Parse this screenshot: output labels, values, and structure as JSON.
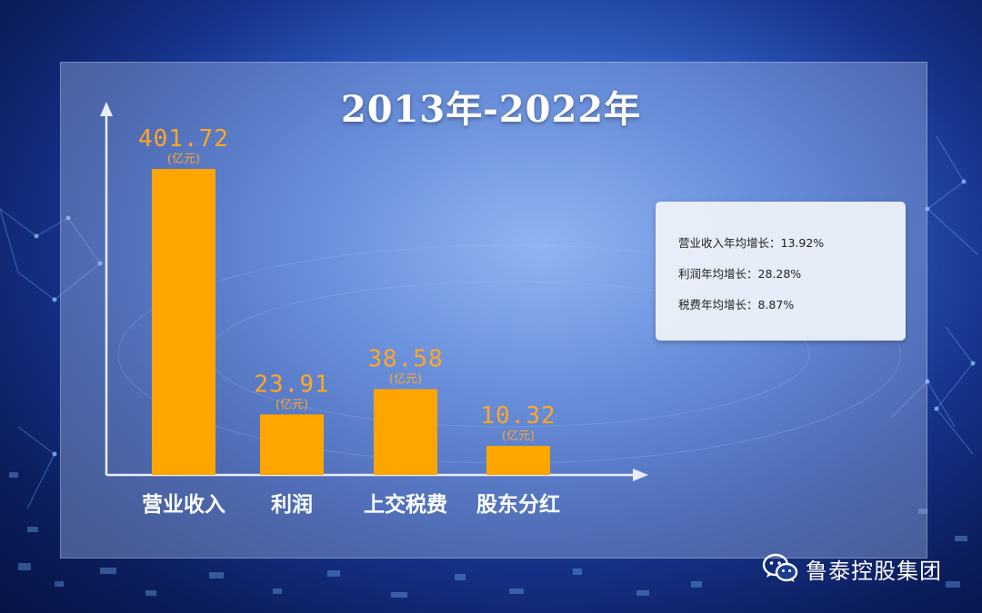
{
  "chart_data": {
    "type": "bar",
    "title": "2013年-2022年",
    "categories": [
      "营业收入",
      "利润",
      "上交税费",
      "股东分红"
    ],
    "values": [
      401.72,
      23.91,
      38.58,
      10.32
    ],
    "value_labels": [
      "401.72",
      "23.91",
      "38.58",
      "10.32"
    ],
    "unit_label": "(亿元)",
    "bar_color": "#FFA500",
    "label_color": "#FFA726",
    "scale": "non-linear"
  },
  "growth_box": {
    "items": [
      "营业收入年均增长：13.92%",
      "利润年均增长：28.28%",
      "税费年均增长：8.87%"
    ]
  },
  "brand": {
    "name": "鲁泰控股集团",
    "icon": "wechat-icon"
  }
}
